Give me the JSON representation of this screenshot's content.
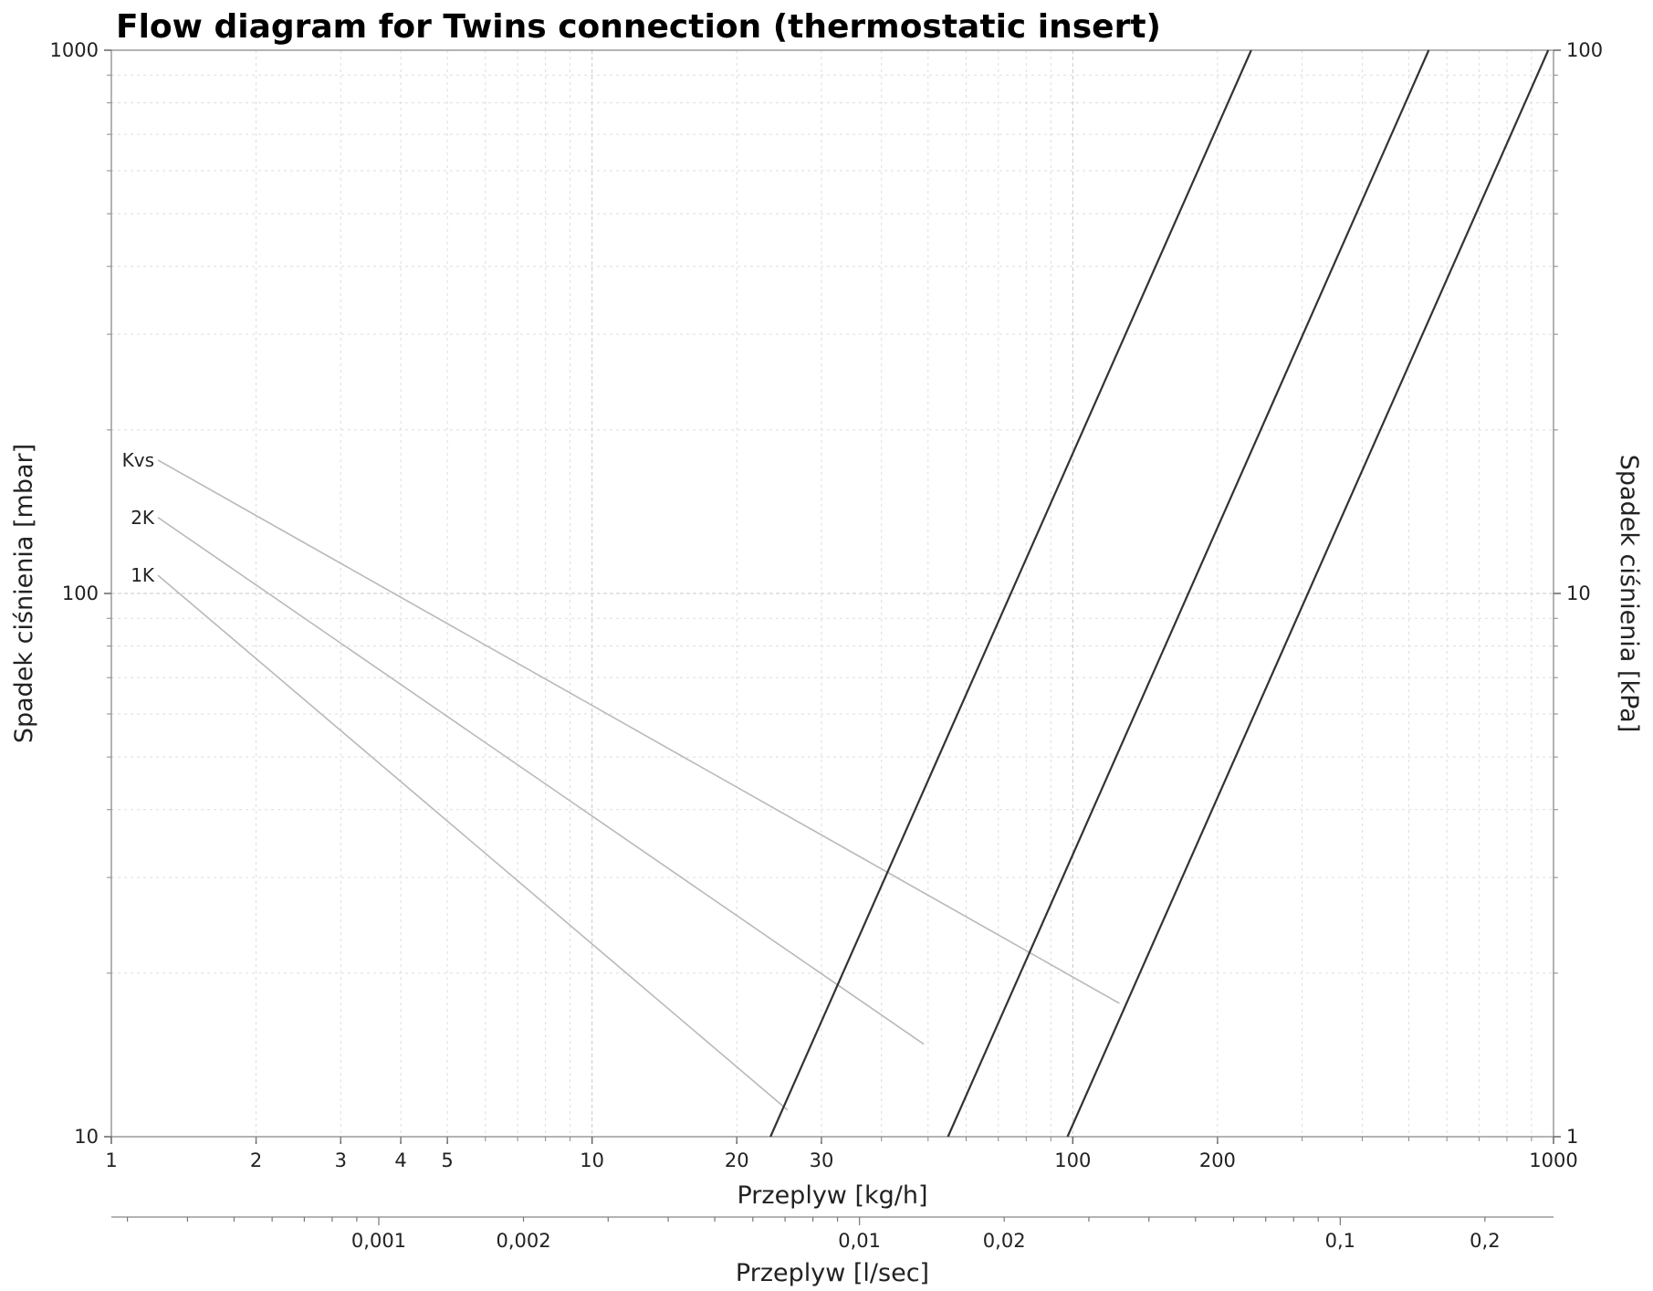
{
  "chart_data": {
    "type": "line",
    "title": "Flow diagram for Twins connection (thermostatic insert)",
    "xlabel": "Przeplyw [kg/h]",
    "ylabel": "Spadek ciśnienia [mbar]",
    "y2label": "Spadek ciśnienia [kPa]",
    "x2label": "Przeplyw [l/sec]",
    "xscale": "log",
    "yscale": "log",
    "xlim": [
      1,
      1000
    ],
    "ylim": [
      10,
      1000
    ],
    "y2lim": [
      1,
      100
    ],
    "grid": true,
    "x_ticks": [
      "1",
      "2",
      "3",
      "4",
      "5",
      "10",
      "20",
      "30",
      "100",
      "200",
      "1000"
    ],
    "x_tick_values": [
      1,
      2,
      3,
      4,
      5,
      10,
      20,
      30,
      100,
      200,
      1000
    ],
    "y_ticks": [
      "10",
      "100",
      "1000"
    ],
    "y_tick_values": [
      10,
      100,
      1000
    ],
    "y2_ticks": [
      "1",
      "10",
      "100"
    ],
    "y2_tick_values": [
      1,
      10,
      100
    ],
    "x2_ticks": [
      "0,001",
      "0,002",
      "0,01",
      "0,02",
      "0,1",
      "0,2"
    ],
    "x2_tick_values": [
      0.001,
      0.002,
      0.01,
      0.02,
      0.1,
      0.2
    ],
    "series": [
      {
        "name": "1K",
        "x": [
          23.5,
          235
        ],
        "y": [
          10,
          1000
        ]
      },
      {
        "name": "2K",
        "x": [
          55,
          550
        ],
        "y": [
          10,
          1000
        ]
      },
      {
        "name": "Kvs",
        "x": [
          97.5,
          975
        ],
        "y": [
          10,
          1000
        ]
      }
    ],
    "annotations": [
      {
        "text": "Kvs",
        "x_start": 1.25,
        "y_start": 176,
        "x_end": 125,
        "y_end": 17.6
      },
      {
        "text": "2K",
        "x_start": 1.25,
        "y_start": 138,
        "x_end": 49,
        "y_end": 14.8
      },
      {
        "text": "1K",
        "x_start": 1.25,
        "y_start": 108,
        "x_end": 25.5,
        "y_end": 11.2
      }
    ]
  }
}
